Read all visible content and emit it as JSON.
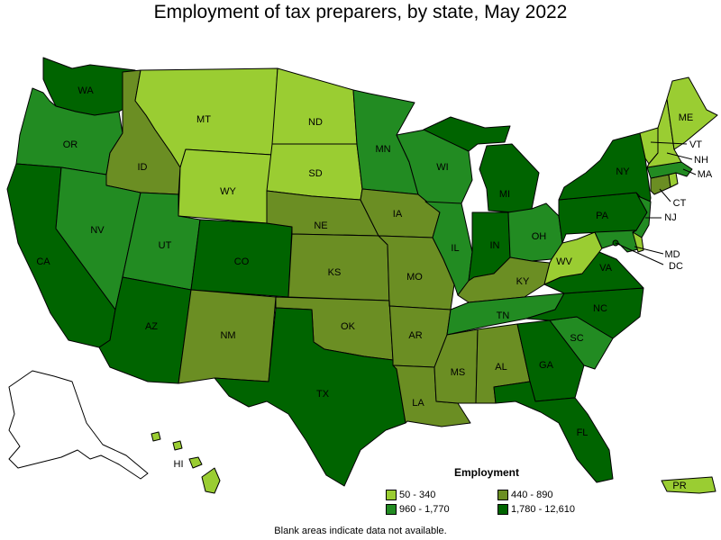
{
  "title": "Employment of tax preparers, by state, May 2022",
  "footnote": "Blank areas indicate data not available.",
  "legend": {
    "title": "Employment",
    "items": [
      {
        "label": "50 - 340",
        "color": "#9acd32"
      },
      {
        "label": "440 - 890",
        "color": "#6b8e23"
      },
      {
        "label": "960 - 1,770",
        "color": "#228b22"
      },
      {
        "label": "1,780 - 12,610",
        "color": "#006400"
      }
    ]
  },
  "colors": {
    "c1": "#9acd32",
    "c2": "#6b8e23",
    "c3": "#228b22",
    "c4": "#006400",
    "blank": "#ffffff"
  },
  "states": {
    "WA": {
      "label": "WA",
      "class": "c4"
    },
    "OR": {
      "label": "OR",
      "class": "c3"
    },
    "CA": {
      "label": "CA",
      "class": "c4"
    },
    "ID": {
      "label": "ID",
      "class": "c2"
    },
    "NV": {
      "label": "NV",
      "class": "c3"
    },
    "MT": {
      "label": "MT",
      "class": "c1"
    },
    "WY": {
      "label": "WY",
      "class": "c1"
    },
    "UT": {
      "label": "UT",
      "class": "c3"
    },
    "AZ": {
      "label": "AZ",
      "class": "c4"
    },
    "CO": {
      "label": "CO",
      "class": "c4"
    },
    "NM": {
      "label": "NM",
      "class": "c2"
    },
    "ND": {
      "label": "ND",
      "class": "c1"
    },
    "SD": {
      "label": "SD",
      "class": "c1"
    },
    "NE": {
      "label": "NE",
      "class": "c2"
    },
    "KS": {
      "label": "KS",
      "class": "c2"
    },
    "OK": {
      "label": "OK",
      "class": "c2"
    },
    "TX": {
      "label": "TX",
      "class": "c4"
    },
    "MN": {
      "label": "MN",
      "class": "c3"
    },
    "IA": {
      "label": "IA",
      "class": "c2"
    },
    "MO": {
      "label": "MO",
      "class": "c2"
    },
    "AR": {
      "label": "AR",
      "class": "c2"
    },
    "LA": {
      "label": "LA",
      "class": "c2"
    },
    "WI": {
      "label": "WI",
      "class": "c3"
    },
    "IL": {
      "label": "IL",
      "class": "c3"
    },
    "MI": {
      "label": "MI",
      "class": "c4"
    },
    "IN": {
      "label": "IN",
      "class": "c4"
    },
    "OH": {
      "label": "OH",
      "class": "c3"
    },
    "KY": {
      "label": "KY",
      "class": "c2"
    },
    "TN": {
      "label": "TN",
      "class": "c3"
    },
    "MS": {
      "label": "MS",
      "class": "c2"
    },
    "AL": {
      "label": "AL",
      "class": "c2"
    },
    "GA": {
      "label": "GA",
      "class": "c4"
    },
    "FL": {
      "label": "FL",
      "class": "c4"
    },
    "SC": {
      "label": "SC",
      "class": "c3"
    },
    "NC": {
      "label": "NC",
      "class": "c4"
    },
    "VA": {
      "label": "VA",
      "class": "c4"
    },
    "WV": {
      "label": "WV",
      "class": "c1"
    },
    "PA": {
      "label": "PA",
      "class": "c4"
    },
    "NY": {
      "label": "NY",
      "class": "c4"
    },
    "NJ": {
      "label": "NJ",
      "class": "c3"
    },
    "DE": {
      "label": "",
      "class": "c1"
    },
    "MD": {
      "label": "MD",
      "class": "c3"
    },
    "DC": {
      "label": "DC",
      "class": "c4"
    },
    "CT": {
      "label": "CT",
      "class": "c2"
    },
    "RI": {
      "label": "",
      "class": "c1"
    },
    "MA": {
      "label": "MA",
      "class": "c3"
    },
    "VT": {
      "label": "VT",
      "class": "c1"
    },
    "NH": {
      "label": "NH",
      "class": "c1"
    },
    "ME": {
      "label": "ME",
      "class": "c1"
    },
    "AK": {
      "label": "",
      "class": "blank"
    },
    "HI": {
      "label": "HI",
      "class": "c1"
    },
    "PR": {
      "label": "PR",
      "class": "c1"
    }
  }
}
